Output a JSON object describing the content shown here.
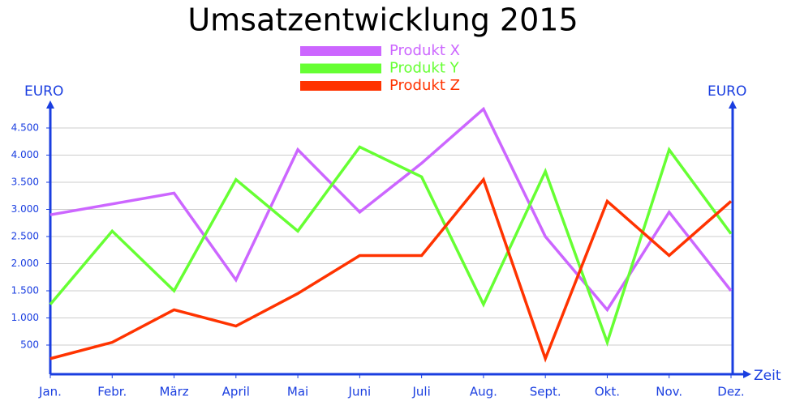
{
  "chart_data": {
    "type": "line",
    "title": "Umsatzentwicklung 2015",
    "y_label": "EURO",
    "y2_label": "EURO",
    "x_label": "Zeit",
    "categories": [
      "Jan.",
      "Febr.",
      "März",
      "April",
      "Mai",
      "Juni",
      "Juli",
      "Aug.",
      "Sept.",
      "Okt.",
      "Nov.",
      "Dez."
    ],
    "series": [
      {
        "name": "Produkt X",
        "color": "#cc66ff",
        "values": [
          2900,
          3100,
          3300,
          1700,
          4100,
          2950,
          3850,
          4850,
          2500,
          1150,
          2950,
          1500
        ]
      },
      {
        "name": "Produkt Y",
        "color": "#66ff33",
        "values": [
          1250,
          2600,
          1500,
          3550,
          2600,
          4150,
          3600,
          1250,
          3700,
          550,
          4100,
          2550
        ]
      },
      {
        "name": "Produkt Z",
        "color": "#ff3300",
        "values": [
          250,
          550,
          1150,
          850,
          1450,
          2150,
          2150,
          3550,
          250,
          3150,
          2150,
          3150
        ]
      }
    ],
    "ylim": [
      0,
      5000
    ],
    "yticks": [
      500,
      {
        "value": 1000,
        "label": "1.000"
      },
      {
        "value": 1500,
        "label": "1.500"
      },
      {
        "value": 2000,
        "label": "2.000"
      },
      {
        "value": 2500,
        "label": "2.500"
      },
      {
        "value": 3000,
        "label": "3.000"
      },
      {
        "value": 3500,
        "label": "3.500"
      },
      {
        "value": 4000,
        "label": "4.000"
      },
      {
        "value": 4500,
        "label": "4.500"
      }
    ],
    "grid": true
  }
}
